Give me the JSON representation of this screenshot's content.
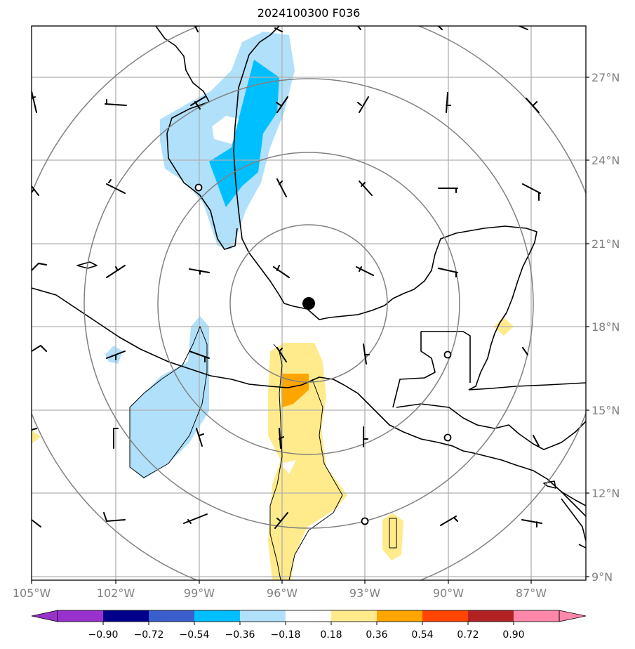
{
  "title": "2024100300 F036",
  "lat_labels": [
    "27°N",
    "24°N",
    "21°N",
    "18°N",
    "15°N",
    "12°N",
    "9°N"
  ],
  "lon_labels": [
    "105°W",
    "102°W",
    "99°W",
    "96°W",
    "93°W",
    "90°W",
    "87°W"
  ],
  "colorbar": {
    "ticks": [
      "−0.90",
      "−0.72",
      "−0.54",
      "−0.36",
      "−0.18",
      "0.18",
      "0.36",
      "0.54",
      "0.72",
      "0.90"
    ],
    "colors": [
      "#9932cc",
      "#00008b",
      "#3a5fcd",
      "#00bfff",
      "#b0e0fa",
      "#ffffff",
      "#ffeb8c",
      "#ffa500",
      "#ff4500",
      "#b22222",
      "#ff88aa"
    ]
  },
  "center_marker": {
    "lon": -95.0,
    "lat": 18.8
  },
  "range_rings": "concentric circles around storm center",
  "station_markers": [
    "open circle",
    "open circle",
    "open circle",
    "open circle"
  ]
}
